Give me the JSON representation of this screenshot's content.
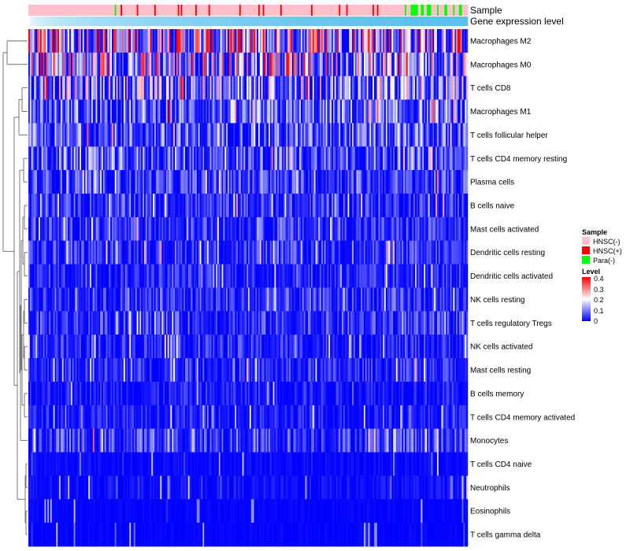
{
  "chart_data": {
    "type": "heatmap",
    "annotation_tracks": [
      {
        "label": "Sample"
      },
      {
        "label": "Gene expression level"
      }
    ],
    "rows": [
      {
        "label": "Macrophages M2",
        "mean_level": 0.22
      },
      {
        "label": "Macrophages M0",
        "mean_level": 0.18
      },
      {
        "label": "T cells CD8",
        "mean_level": 0.13
      },
      {
        "label": "Macrophages M1",
        "mean_level": 0.09
      },
      {
        "label": "T cells follicular helper",
        "mean_level": 0.08
      },
      {
        "label": "T cells CD4 memory resting",
        "mean_level": 0.08
      },
      {
        "label": "Plasma cells",
        "mean_level": 0.06
      },
      {
        "label": "B cells naive",
        "mean_level": 0.05
      },
      {
        "label": "Mast cells activated",
        "mean_level": 0.05
      },
      {
        "label": "Dendritic cells resting",
        "mean_level": 0.05
      },
      {
        "label": "Dendritic cells activated",
        "mean_level": 0.04
      },
      {
        "label": "NK cells resting",
        "mean_level": 0.05
      },
      {
        "label": "T cells regulatory  Tregs",
        "mean_level": 0.05
      },
      {
        "label": "NK cells activated",
        "mean_level": 0.04
      },
      {
        "label": "Mast cells resting",
        "mean_level": 0.04
      },
      {
        "label": "B cells memory",
        "mean_level": 0.03
      },
      {
        "label": "T cells CD4 memory activated",
        "mean_level": 0.03
      },
      {
        "label": "Monocytes",
        "mean_level": 0.06
      },
      {
        "label": "T cells CD4 naive",
        "mean_level": 0.01
      },
      {
        "label": "Neutrophils",
        "mean_level": 0.015
      },
      {
        "label": "Eosinophils",
        "mean_level": 0.005
      },
      {
        "label": "T cells gamma delta",
        "mean_level": 0.005
      }
    ],
    "n_samples": 300,
    "legend_sample": {
      "title": "Sample",
      "entries": [
        {
          "label": "HNSC(-)",
          "color": "#ffc0cb"
        },
        {
          "label": "HNSC(+)",
          "color": "#ff0000"
        },
        {
          "label": "Para(-)",
          "color": "#00ff00"
        }
      ]
    },
    "legend_level": {
      "title": "Level",
      "ticks": [
        "0.4",
        "0.3",
        "0.2",
        "0.1",
        "0"
      ],
      "range": [
        0,
        0.4
      ],
      "colors": {
        "low": "#0000ff",
        "mid": "#ffffff",
        "high": "#ff0000"
      }
    },
    "track_colors": {
      "expression_low": "#ffffff",
      "expression_high": "#5bc0eb"
    }
  }
}
